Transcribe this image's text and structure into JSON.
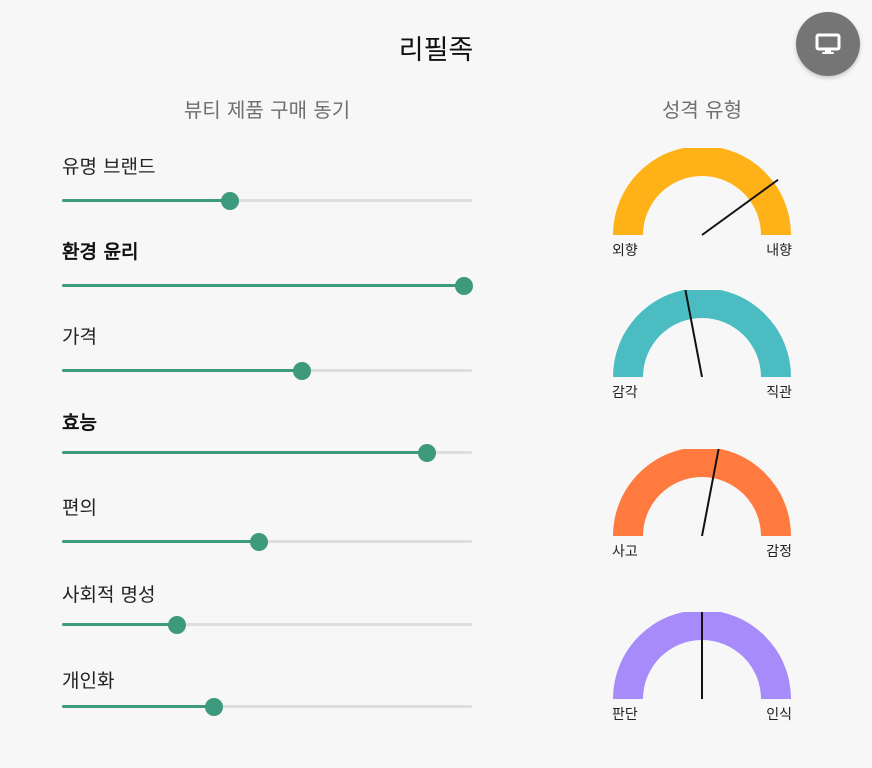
{
  "app": {
    "title": "리필족"
  },
  "fab": {
    "icon": "monitor-icon"
  },
  "motives": {
    "title": "뷰티 제품 구매 동기",
    "items": [
      {
        "label": "유명 브랜드",
        "value": 0.41,
        "bold": false
      },
      {
        "label": "환경 윤리",
        "value": 0.98,
        "bold": true
      },
      {
        "label": "가격",
        "value": 0.585,
        "bold": false
      },
      {
        "label": "효능",
        "value": 0.89,
        "bold": true
      },
      {
        "label": "편의",
        "value": 0.48,
        "bold": false
      },
      {
        "label": "사회적 명성",
        "value": 0.28,
        "bold": false
      },
      {
        "label": "개인화",
        "value": 0.37,
        "bold": false
      }
    ]
  },
  "personality": {
    "title": "성격 유형",
    "gauges": [
      {
        "left": "외향",
        "right": "내향",
        "color": "#FFB217",
        "value": 0.8
      },
      {
        "left": "감각",
        "right": "직관",
        "color": "#4BBDC2",
        "value": 0.44
      },
      {
        "left": "사고",
        "right": "감정",
        "color": "#FF7A3F",
        "value": 0.56
      },
      {
        "left": "판단",
        "right": "인식",
        "color": "#A78BFA",
        "value": 0.5
      }
    ]
  }
}
